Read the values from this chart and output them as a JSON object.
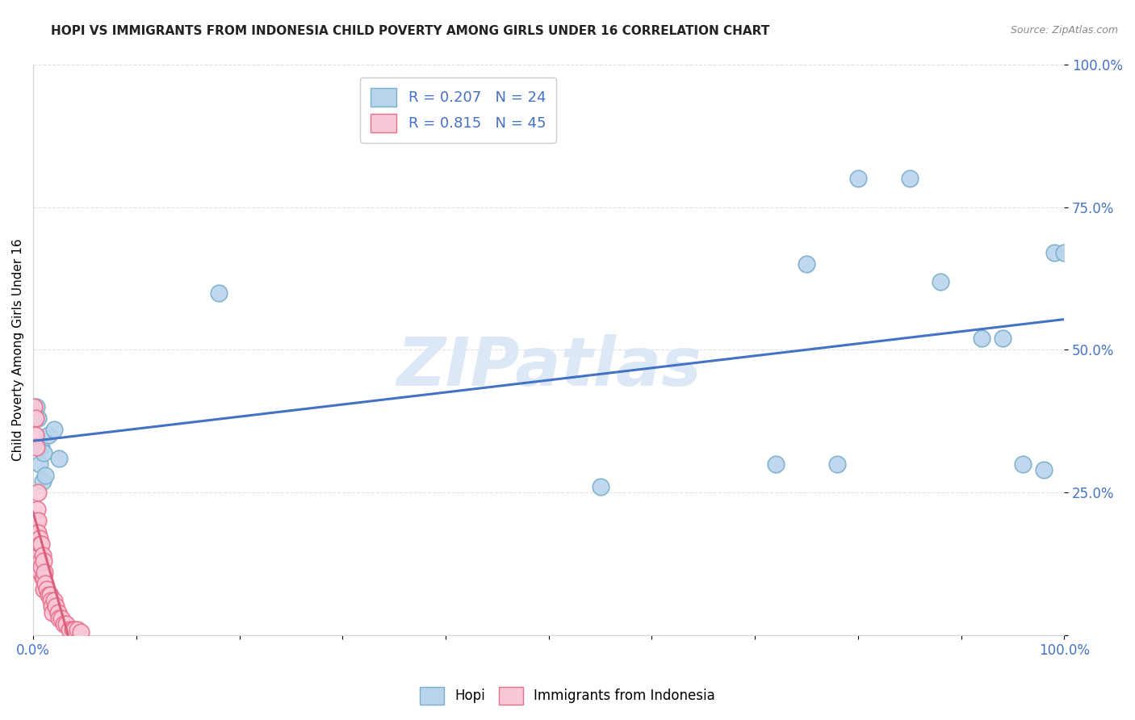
{
  "title": "HOPI VS IMMIGRANTS FROM INDONESIA CHILD POVERTY AMONG GIRLS UNDER 16 CORRELATION CHART",
  "source": "Source: ZipAtlas.com",
  "ylabel": "Child Poverty Among Girls Under 16",
  "watermark": "ZIPatlas",
  "hopi_color": "#b8d4eb",
  "hopi_edge_color": "#7aaecc",
  "indonesia_color": "#f9c8d8",
  "indonesia_edge_color": "#e8708a",
  "trendline_hopi_color": "#4472c4",
  "trendline_indonesia_color": "#d9607a",
  "R_hopi": 0.207,
  "N_hopi": 24,
  "R_indonesia": 0.815,
  "N_indonesia": 45,
  "hopi_x": [
    0.003,
    0.005,
    0.006,
    0.008,
    0.009,
    0.01,
    0.012,
    0.015,
    0.02,
    0.025,
    0.18,
    0.55,
    0.72,
    0.75,
    0.78,
    0.8,
    0.85,
    0.88,
    0.92,
    0.94,
    0.96,
    0.98,
    0.99,
    1.0
  ],
  "hopi_y": [
    0.4,
    0.38,
    0.3,
    0.33,
    0.27,
    0.32,
    0.28,
    0.35,
    0.36,
    0.31,
    0.6,
    0.26,
    0.3,
    0.65,
    0.3,
    0.8,
    0.8,
    0.62,
    0.52,
    0.52,
    0.3,
    0.29,
    0.67,
    0.67
  ],
  "indonesia_x": [
    0.001,
    0.002,
    0.002,
    0.003,
    0.003,
    0.003,
    0.004,
    0.004,
    0.004,
    0.005,
    0.005,
    0.005,
    0.005,
    0.006,
    0.006,
    0.007,
    0.007,
    0.007,
    0.008,
    0.008,
    0.009,
    0.009,
    0.01,
    0.01,
    0.01,
    0.011,
    0.012,
    0.013,
    0.015,
    0.016,
    0.017,
    0.018,
    0.019,
    0.02,
    0.022,
    0.024,
    0.025,
    0.027,
    0.03,
    0.032,
    0.035,
    0.038,
    0.04,
    0.043,
    0.046
  ],
  "indonesia_y": [
    0.4,
    0.38,
    0.35,
    0.33,
    0.2,
    0.18,
    0.22,
    0.18,
    0.15,
    0.25,
    0.2,
    0.18,
    0.15,
    0.17,
    0.14,
    0.16,
    0.13,
    0.11,
    0.16,
    0.12,
    0.14,
    0.1,
    0.13,
    0.1,
    0.08,
    0.11,
    0.09,
    0.08,
    0.07,
    0.07,
    0.06,
    0.05,
    0.04,
    0.06,
    0.05,
    0.04,
    0.03,
    0.03,
    0.02,
    0.02,
    0.01,
    0.01,
    0.01,
    0.01,
    0.005
  ],
  "xlim": [
    0.0,
    1.0
  ],
  "ylim": [
    0.0,
    1.0
  ],
  "grid_color": "#e0e0e0",
  "background_color": "#ffffff",
  "title_fontsize": 11,
  "axis_label_fontsize": 11,
  "legend_fontsize": 13,
  "tick_label_color": "#4472c4",
  "watermark_color": "#dce8f5",
  "watermark_fontsize": 60
}
